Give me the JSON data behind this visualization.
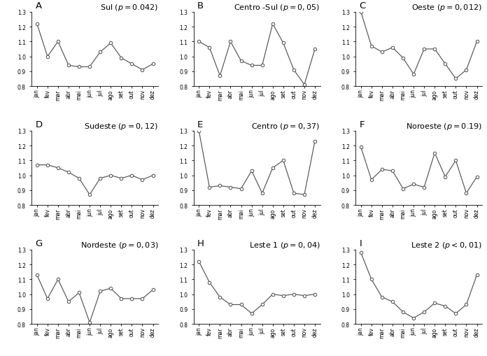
{
  "months": [
    "jan",
    "fev",
    "mar",
    "abr",
    "mai",
    "jun",
    "jul",
    "ago",
    "set",
    "out",
    "nov",
    "dez"
  ],
  "panels": [
    {
      "label": "A",
      "title": "Sul",
      "pval": "p =0.042",
      "values": [
        1.22,
        1.0,
        1.1,
        0.94,
        0.93,
        0.93,
        1.03,
        1.09,
        0.99,
        0.95,
        0.91,
        0.95
      ]
    },
    {
      "label": "B",
      "title": "Centro -Sul",
      "pval": "p =0,05",
      "values": [
        1.1,
        1.06,
        0.87,
        1.1,
        0.97,
        0.94,
        0.94,
        1.22,
        1.09,
        0.91,
        0.81,
        1.05
      ]
    },
    {
      "label": "C",
      "title": "Oeste",
      "pval": "p =0,012",
      "values": [
        1.3,
        1.07,
        1.03,
        1.06,
        0.99,
        0.88,
        1.05,
        1.05,
        0.95,
        0.85,
        0.91,
        1.1
      ]
    },
    {
      "label": "D",
      "title": "Sudeste",
      "pval": "p =0,12",
      "values": [
        1.07,
        1.07,
        1.05,
        1.02,
        0.98,
        0.87,
        0.98,
        1.0,
        0.98,
        1.0,
        0.97,
        1.0
      ]
    },
    {
      "label": "E",
      "title": "Centro",
      "pval": "p =0,37",
      "values": [
        1.3,
        0.92,
        0.93,
        0.92,
        0.91,
        1.03,
        0.88,
        1.05,
        1.1,
        0.88,
        0.87,
        1.23
      ]
    },
    {
      "label": "F",
      "title": "Noroeste",
      "pval": "p =0.19",
      "values": [
        1.19,
        0.97,
        1.04,
        1.03,
        0.91,
        0.94,
        0.92,
        1.15,
        0.99,
        1.1,
        0.88,
        0.99
      ]
    },
    {
      "label": "G",
      "title": "Nordeste",
      "pval": "p =0,03",
      "values": [
        1.13,
        0.97,
        1.1,
        0.95,
        1.01,
        0.81,
        1.02,
        1.04,
        0.97,
        0.97,
        0.97,
        1.03
      ]
    },
    {
      "label": "H",
      "title": "Leste 1",
      "pval": "p =0,04",
      "values": [
        1.22,
        1.08,
        0.98,
        0.93,
        0.93,
        0.87,
        0.93,
        1.0,
        0.99,
        1.0,
        0.99,
        1.0
      ]
    },
    {
      "label": "I",
      "title": "Leste 2",
      "pval": "p <0,01",
      "values": [
        1.28,
        1.1,
        0.98,
        0.95,
        0.88,
        0.84,
        0.88,
        0.94,
        0.92,
        0.87,
        0.93,
        1.13
      ]
    }
  ],
  "ylim": [
    0.8,
    1.3
  ],
  "yticks": [
    0.8,
    0.9,
    1.0,
    1.1,
    1.2,
    1.3
  ],
  "line_color": "#555555",
  "marker_color": "white",
  "marker_edge_color": "#555555",
  "bg_color": "white",
  "title_fontsize": 8.0,
  "label_fontsize": 9.5,
  "tick_fontsize": 5.5
}
